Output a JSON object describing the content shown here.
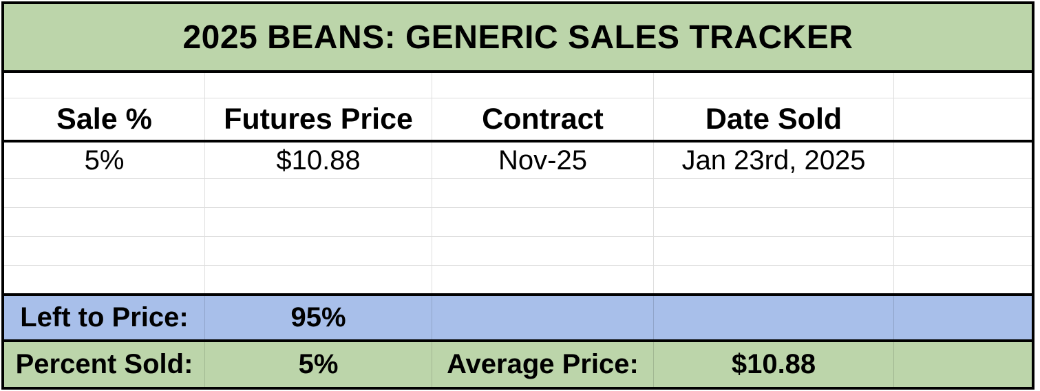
{
  "title": "2025 BEANS: GENERIC SALES TRACKER",
  "grid": {
    "headers": [
      "Sale %",
      "Futures Price",
      "Contract",
      "Date Sold",
      ""
    ],
    "sales": [
      {
        "sale_pct": "5%",
        "futures_price": "$10.88",
        "contract": "Nov-25",
        "date_sold": "Jan 23rd, 2025"
      }
    ],
    "empty_row_count": 4
  },
  "summary": {
    "left_to_price": {
      "label": "Left to Price:",
      "value": "95%"
    },
    "percent_sold": {
      "label": "Percent Sold:",
      "value": "5%"
    },
    "average_price": {
      "label": "Average Price:",
      "value": "$10.88"
    }
  },
  "colors": {
    "header_green": "#bcd5aa",
    "summary_blue": "#a8bfea",
    "gridline": "#dedede",
    "border": "#000000"
  }
}
